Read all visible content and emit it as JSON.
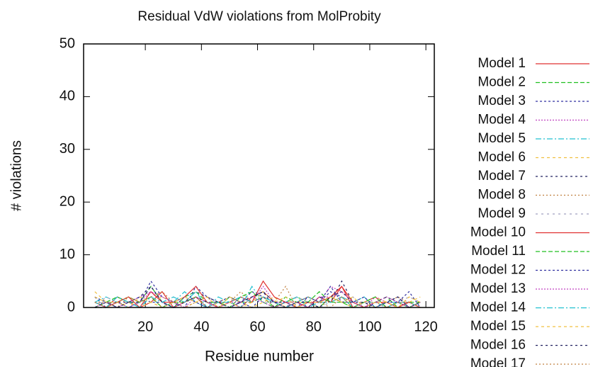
{
  "chart_data": {
    "type": "line",
    "title": "Residual VdW violations from MolProbity",
    "x_label": "Residue number",
    "y_label": "# violations",
    "xlim": [
      -2,
      123
    ],
    "ylim": [
      0,
      50
    ],
    "xticks": [
      20,
      40,
      60,
      80,
      100,
      120
    ],
    "yticks": [
      0,
      10,
      20,
      30,
      40,
      50
    ],
    "x": [
      2,
      6,
      10,
      14,
      18,
      22,
      26,
      30,
      34,
      38,
      42,
      46,
      50,
      54,
      58,
      62,
      66,
      70,
      74,
      78,
      82,
      86,
      90,
      94,
      98,
      102,
      106,
      110,
      114,
      118
    ],
    "series": [
      {
        "name": "Model 1",
        "color": "#e03030",
        "values": [
          1,
          0,
          2,
          1,
          0,
          1,
          3,
          0,
          1,
          2,
          0,
          1,
          1,
          0,
          2,
          3,
          1,
          0,
          1,
          0,
          2,
          1,
          4,
          0,
          1,
          2,
          0,
          1,
          1,
          0
        ]
      },
      {
        "name": "Model 2",
        "color": "#20c020",
        "values": [
          0,
          1,
          1,
          2,
          1,
          4,
          1,
          0,
          2,
          3,
          1,
          0,
          2,
          1,
          1,
          2,
          0,
          1,
          2,
          1,
          0,
          2,
          1,
          1,
          0,
          1,
          2,
          0,
          1,
          1
        ]
      },
      {
        "name": "Model 3",
        "color": "#3030a0",
        "values": [
          2,
          0,
          1,
          0,
          1,
          5,
          2,
          1,
          0,
          4,
          2,
          1,
          0,
          1,
          3,
          2,
          1,
          0,
          1,
          2,
          1,
          3,
          2,
          0,
          1,
          0,
          1,
          2,
          0,
          1
        ]
      },
      {
        "name": "Model 4",
        "color": "#c040c0",
        "values": [
          0,
          1,
          0,
          1,
          2,
          3,
          1,
          0,
          1,
          2,
          1,
          0,
          1,
          2,
          1,
          4,
          1,
          1,
          0,
          1,
          1,
          4,
          3,
          1,
          0,
          2,
          1,
          0,
          1,
          0
        ]
      },
      {
        "name": "Model 5",
        "color": "#20c0d0",
        "values": [
          1,
          2,
          1,
          0,
          1,
          2,
          0,
          1,
          3,
          1,
          0,
          2,
          1,
          0,
          4,
          1,
          0,
          1,
          2,
          0,
          1,
          1,
          2,
          1,
          2,
          0,
          1,
          1,
          0,
          1
        ]
      },
      {
        "name": "Model 6",
        "color": "#f0c040",
        "values": [
          3,
          1,
          0,
          1,
          0,
          1,
          2,
          1,
          0,
          1,
          1,
          0,
          2,
          1,
          0,
          1,
          2,
          0,
          1,
          1,
          0,
          2,
          1,
          0,
          1,
          2,
          1,
          0,
          1,
          2
        ]
      },
      {
        "name": "Model 7",
        "color": "#202060",
        "values": [
          0,
          0,
          1,
          1,
          2,
          4,
          1,
          0,
          1,
          3,
          2,
          1,
          0,
          1,
          2,
          3,
          0,
          1,
          1,
          0,
          2,
          1,
          5,
          1,
          0,
          1,
          2,
          1,
          0,
          1
        ]
      },
      {
        "name": "Model 8",
        "color": "#c08040",
        "values": [
          1,
          1,
          0,
          2,
          1,
          2,
          3,
          1,
          0,
          1,
          2,
          0,
          1,
          3,
          1,
          2,
          1,
          4,
          0,
          1,
          1,
          0,
          2,
          1,
          1,
          0,
          1,
          2,
          1,
          0
        ]
      },
      {
        "name": "Model 9",
        "color": "#a0a0c0",
        "values": [
          0,
          2,
          1,
          0,
          1,
          1,
          0,
          2,
          1,
          2,
          0,
          1,
          1,
          0,
          2,
          1,
          1,
          0,
          2,
          1,
          0,
          1,
          1,
          2,
          0,
          1,
          0,
          1,
          2,
          1
        ]
      },
      {
        "name": "Model 10",
        "color": "#e03030",
        "values": [
          1,
          0,
          1,
          2,
          0,
          3,
          1,
          1,
          2,
          4,
          1,
          0,
          1,
          2,
          1,
          5,
          2,
          1,
          0,
          1,
          1,
          2,
          4,
          1,
          0,
          1,
          1,
          0,
          1,
          0
        ]
      },
      {
        "name": "Model 11",
        "color": "#20c020",
        "values": [
          0,
          1,
          2,
          1,
          1,
          2,
          0,
          1,
          1,
          2,
          1,
          1,
          0,
          2,
          3,
          1,
          0,
          2,
          1,
          1,
          3,
          1,
          1,
          0,
          1,
          2,
          0,
          1,
          0,
          1
        ]
      },
      {
        "name": "Model 12",
        "color": "#3030a0",
        "values": [
          2,
          1,
          0,
          1,
          2,
          1,
          1,
          0,
          2,
          1,
          0,
          1,
          2,
          1,
          0,
          2,
          1,
          1,
          0,
          2,
          1,
          4,
          1,
          1,
          2,
          0,
          1,
          1,
          3,
          0
        ]
      },
      {
        "name": "Model 13",
        "color": "#c040c0",
        "values": [
          0,
          1,
          1,
          0,
          1,
          3,
          2,
          1,
          0,
          2,
          1,
          0,
          1,
          1,
          2,
          1,
          0,
          1,
          1,
          0,
          2,
          2,
          3,
          1,
          0,
          1,
          2,
          1,
          0,
          1
        ]
      },
      {
        "name": "Model 14",
        "color": "#20c0d0",
        "values": [
          1,
          0,
          2,
          1,
          0,
          2,
          1,
          2,
          1,
          3,
          0,
          1,
          1,
          2,
          1,
          2,
          1,
          0,
          1,
          2,
          1,
          1,
          2,
          0,
          1,
          1,
          0,
          1,
          1,
          0
        ]
      },
      {
        "name": "Model 15",
        "color": "#f0c040",
        "values": [
          2,
          1,
          1,
          0,
          2,
          1,
          0,
          1,
          2,
          1,
          2,
          0,
          1,
          0,
          1,
          3,
          1,
          2,
          0,
          1,
          1,
          2,
          1,
          2,
          0,
          1,
          1,
          0,
          2,
          1
        ]
      },
      {
        "name": "Model 16",
        "color": "#202060",
        "values": [
          0,
          1,
          0,
          1,
          1,
          4,
          1,
          0,
          1,
          2,
          1,
          1,
          0,
          1,
          2,
          3,
          1,
          0,
          1,
          1,
          0,
          2,
          3,
          1,
          1,
          0,
          1,
          2,
          0,
          1
        ]
      },
      {
        "name": "Model 17",
        "color": "#c08040",
        "values": [
          1,
          0,
          1,
          2,
          1,
          2,
          0,
          1,
          1,
          2,
          0,
          1,
          2,
          1,
          1,
          2,
          0,
          1,
          1,
          2,
          1,
          1,
          2,
          0,
          1,
          1,
          0,
          1,
          1,
          0
        ]
      }
    ]
  }
}
